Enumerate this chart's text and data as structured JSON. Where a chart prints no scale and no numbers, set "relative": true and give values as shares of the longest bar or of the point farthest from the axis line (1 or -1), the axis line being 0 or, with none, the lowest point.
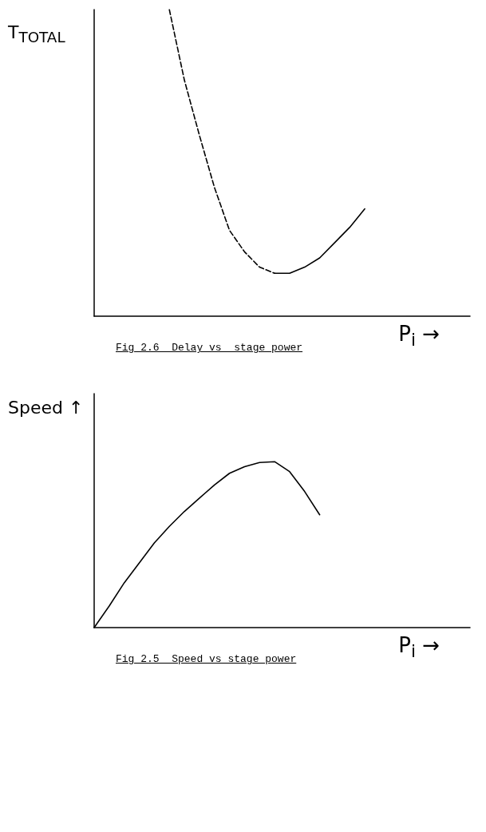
{
  "chart_data": [
    {
      "type": "line",
      "relative": true,
      "xlabel": "P$_{i}$ →",
      "ylabel": "T$_{TOTAL}$",
      "marker": "none",
      "annotations": [
        "Fig 2.6  Delay vs  stage power"
      ],
      "categories": [
        null,
        null,
        null,
        null,
        null,
        null,
        null,
        null,
        null,
        null,
        null,
        null,
        null,
        null,
        null,
        null,
        null,
        null,
        null,
        null,
        null,
        null,
        null,
        null,
        null,
        null
      ],
      "series": [
        {
          "color": "#000000",
          "line_style": "dashed",
          "values": [
            null,
            null,
            null,
            null,
            null,
            1,
            0.77,
            0.59,
            0.42,
            0.28,
            0.21,
            0.16,
            0.14,
            null,
            null,
            null,
            null,
            null,
            null,
            null,
            null,
            null,
            null,
            null,
            null,
            null
          ]
        },
        {
          "color": "#000000",
          "line_style": "solid",
          "values": [
            null,
            null,
            null,
            null,
            null,
            null,
            null,
            null,
            null,
            null,
            null,
            null,
            0.14,
            0.14,
            0.16,
            0.19,
            0.24,
            0.29,
            0.35,
            null,
            null,
            null,
            null,
            null,
            null,
            null
          ]
        }
      ]
    },
    {
      "type": "line",
      "relative": true,
      "xlabel": "P$_{i}$ →",
      "ylabel": "Speed ↑",
      "marker": "none",
      "annotations": [
        "Fig 2.5  Speed vs stage power"
      ],
      "categories": [
        null,
        null,
        null,
        null,
        null,
        null,
        null,
        null,
        null,
        null,
        null,
        null,
        null,
        null,
        null,
        null,
        null,
        null,
        null,
        null,
        null,
        null,
        null,
        null,
        null,
        null
      ],
      "series": [
        {
          "color": "#000000",
          "line_style": "solid",
          "values": [
            0,
            0.13,
            0.27,
            0.39,
            0.51,
            0.61,
            0.7,
            0.78,
            0.86,
            0.93,
            0.97,
            0.995,
            1,
            0.94,
            0.82,
            0.68,
            null,
            null,
            null,
            null,
            null,
            null,
            null,
            null,
            null,
            null
          ]
        }
      ]
    }
  ]
}
